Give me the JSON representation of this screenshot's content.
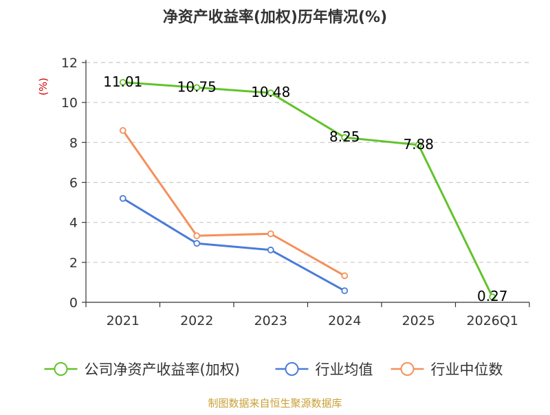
{
  "chart_data": {
    "type": "line",
    "title": "净资产收益率(加权)历年情况(%)",
    "ylabel": "(%)",
    "xlabel": "",
    "categories": [
      "2021",
      "2022",
      "2023",
      "2024",
      "2025",
      "2026Q1"
    ],
    "ylim": [
      0,
      12
    ],
    "yticks": [
      0,
      2,
      4,
      6,
      8,
      10,
      12
    ],
    "grid": true,
    "legend_position": "bottom",
    "series": [
      {
        "name": "公司净资产收益率(加权)",
        "color": "#62c32c",
        "values": [
          11.01,
          10.75,
          10.48,
          8.25,
          7.88,
          0.27
        ],
        "labels": [
          "11.01",
          "10.75",
          "10.48",
          "8.25",
          "7.88",
          "0.27"
        ]
      },
      {
        "name": "行业均值",
        "color": "#4b7bd8",
        "values": [
          5.2,
          2.95,
          2.62,
          0.58,
          null,
          null
        ]
      },
      {
        "name": "行业中位数",
        "color": "#f4905a",
        "values": [
          8.6,
          3.33,
          3.43,
          1.33,
          null,
          null
        ]
      }
    ],
    "source": "制图数据来自恒生聚源数据库"
  }
}
